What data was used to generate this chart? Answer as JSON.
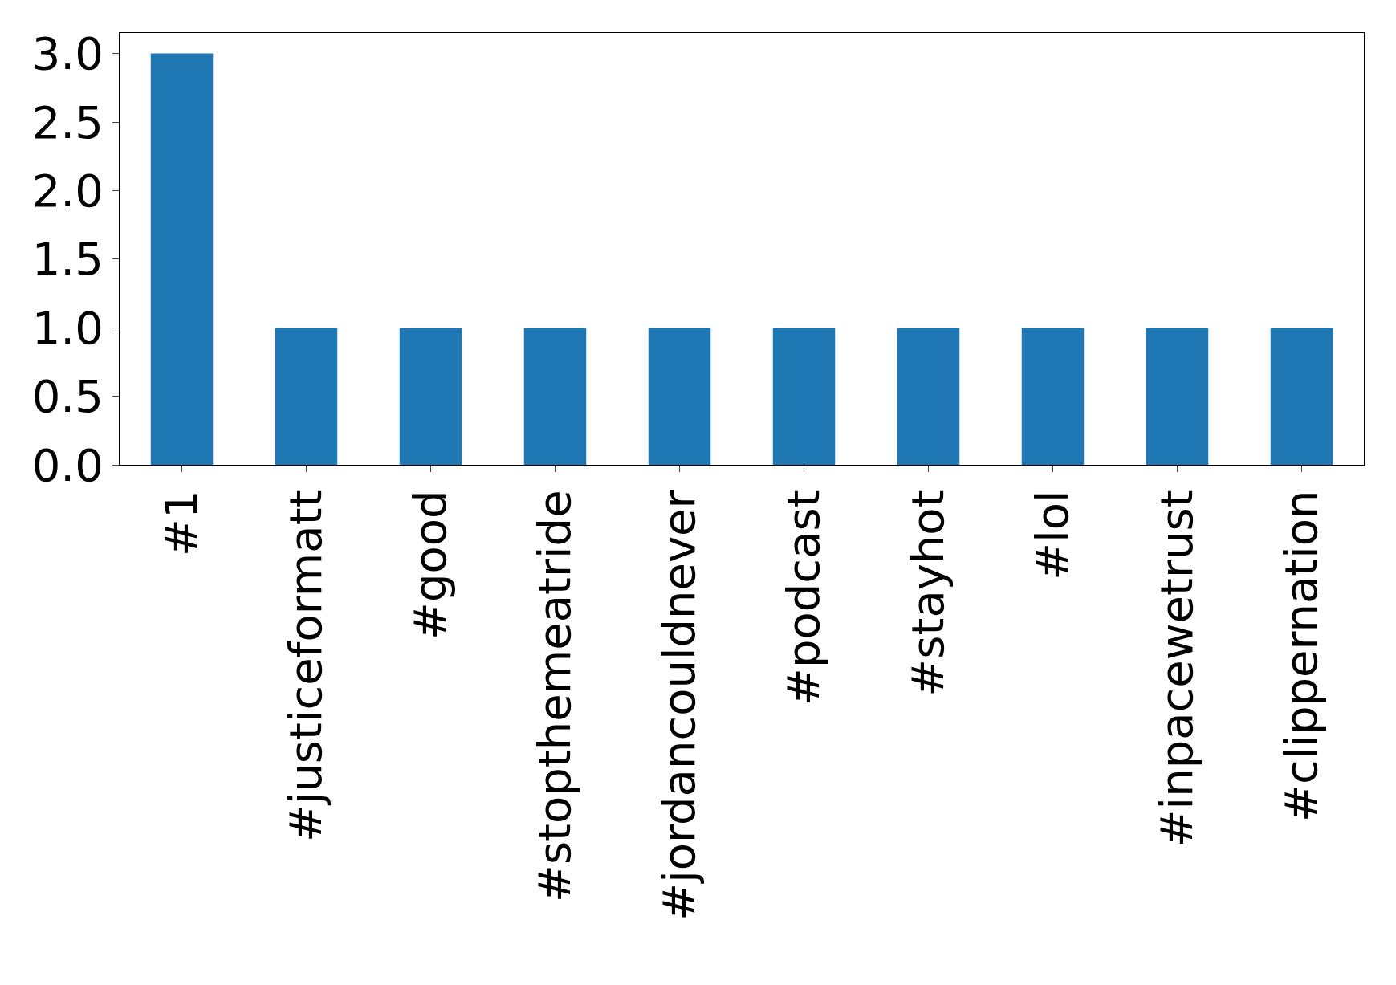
{
  "chart_data": {
    "type": "bar",
    "categories": [
      "#1",
      "#justiceformatt",
      "#good",
      "#stopthemeatride",
      "#jordancouldnever",
      "#podcast",
      "#stayhot",
      "#lol",
      "#inpacewetrust",
      "#clippernation"
    ],
    "values": [
      3,
      1,
      1,
      1,
      1,
      1,
      1,
      1,
      1,
      1
    ],
    "color": "#1f77b4",
    "ylim": [
      0,
      3.15
    ],
    "yticks": [
      {
        "value": 0,
        "label": "0.0"
      },
      {
        "value": 0.5,
        "label": "0.5"
      },
      {
        "value": 1,
        "label": "1.0"
      },
      {
        "value": 1.5,
        "label": "1.5"
      },
      {
        "value": 2,
        "label": "2.0"
      },
      {
        "value": 2.5,
        "label": "2.5"
      },
      {
        "value": 3,
        "label": "3.0"
      }
    ],
    "legend": false
  }
}
